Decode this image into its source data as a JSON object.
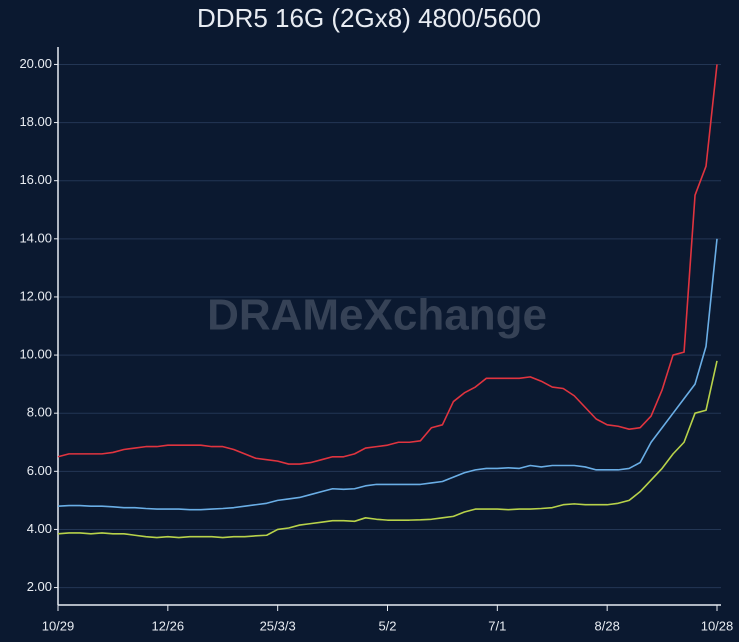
{
  "chart_data": {
    "type": "line",
    "title": "DDR5 16G (2Gx8) 4800/5600",
    "watermark": "DRAMeXchange",
    "x": [
      0,
      1,
      2,
      3,
      4,
      5,
      6,
      7,
      8,
      9,
      10,
      11,
      12,
      13,
      14,
      15,
      16,
      17,
      18,
      19,
      20,
      21,
      22,
      23,
      24,
      25,
      26,
      27,
      28,
      29,
      30,
      31,
      32,
      33,
      34,
      35,
      36,
      37,
      38,
      39,
      40,
      41,
      42,
      43,
      44,
      45,
      46,
      47,
      48,
      49,
      50,
      51,
      52,
      53,
      54,
      55,
      56,
      57,
      58,
      59,
      60
    ],
    "series": [
      {
        "color": "#e0343f",
        "values": [
          6.5,
          6.6,
          6.6,
          6.6,
          6.6,
          6.65,
          6.75,
          6.8,
          6.85,
          6.85,
          6.9,
          6.9,
          6.9,
          6.9,
          6.85,
          6.85,
          6.75,
          6.6,
          6.45,
          6.4,
          6.35,
          6.25,
          6.25,
          6.3,
          6.4,
          6.5,
          6.5,
          6.6,
          6.8,
          6.85,
          6.9,
          7.0,
          7.0,
          7.05,
          7.5,
          7.6,
          8.4,
          8.7,
          8.9,
          9.2,
          9.2,
          9.2,
          9.2,
          9.25,
          9.1,
          8.9,
          8.85,
          8.6,
          8.2,
          7.8,
          7.6,
          7.55,
          7.45,
          7.5,
          7.9,
          8.8,
          10.0,
          10.1,
          15.5,
          16.5,
          20.0
        ]
      },
      {
        "color": "#6aaee6",
        "values": [
          4.8,
          4.82,
          4.82,
          4.8,
          4.8,
          4.78,
          4.75,
          4.75,
          4.72,
          4.7,
          4.7,
          4.7,
          4.68,
          4.68,
          4.7,
          4.72,
          4.75,
          4.8,
          4.85,
          4.9,
          5.0,
          5.05,
          5.1,
          5.2,
          5.3,
          5.4,
          5.38,
          5.4,
          5.5,
          5.55,
          5.55,
          5.55,
          5.55,
          5.55,
          5.6,
          5.65,
          5.8,
          5.95,
          6.05,
          6.1,
          6.1,
          6.12,
          6.1,
          6.2,
          6.15,
          6.2,
          6.2,
          6.2,
          6.15,
          6.05,
          6.05,
          6.05,
          6.1,
          6.3,
          7.0,
          7.5,
          8.0,
          8.5,
          9.0,
          10.3,
          14.0
        ]
      },
      {
        "color": "#b8d24a",
        "values": [
          3.85,
          3.88,
          3.88,
          3.85,
          3.88,
          3.85,
          3.85,
          3.8,
          3.75,
          3.72,
          3.75,
          3.72,
          3.75,
          3.75,
          3.75,
          3.72,
          3.75,
          3.75,
          3.78,
          3.8,
          4.0,
          4.05,
          4.15,
          4.2,
          4.25,
          4.3,
          4.3,
          4.28,
          4.4,
          4.35,
          4.32,
          4.32,
          4.32,
          4.33,
          4.35,
          4.4,
          4.45,
          4.6,
          4.7,
          4.7,
          4.7,
          4.68,
          4.7,
          4.7,
          4.72,
          4.75,
          4.85,
          4.88,
          4.85,
          4.85,
          4.85,
          4.9,
          5.0,
          5.3,
          5.7,
          6.1,
          6.6,
          7.0,
          8.0,
          8.1,
          9.8
        ]
      }
    ],
    "xlim": [
      0,
      60
    ],
    "xticks": [
      {
        "value": 0,
        "label": "10/29"
      },
      {
        "value": 10,
        "label": "12/26"
      },
      {
        "value": 20,
        "label": "25/3/3"
      },
      {
        "value": 30,
        "label": "5/2"
      },
      {
        "value": 40,
        "label": "7/1"
      },
      {
        "value": 50,
        "label": "8/28"
      },
      {
        "value": 60,
        "label": "10/28"
      }
    ],
    "ylim": [
      1.4,
      20.6
    ],
    "yticks": [
      {
        "value": 2,
        "label": "2.00"
      },
      {
        "value": 4,
        "label": "4.00"
      },
      {
        "value": 6,
        "label": "6.00"
      },
      {
        "value": 8,
        "label": "8.00"
      },
      {
        "value": 10,
        "label": "10.00"
      },
      {
        "value": 12,
        "label": "12.00"
      },
      {
        "value": 14,
        "label": "14.00"
      },
      {
        "value": 16,
        "label": "16.00"
      },
      {
        "value": 18,
        "label": "18.00"
      },
      {
        "value": 20,
        "label": "20.00"
      }
    ],
    "grid": true
  }
}
